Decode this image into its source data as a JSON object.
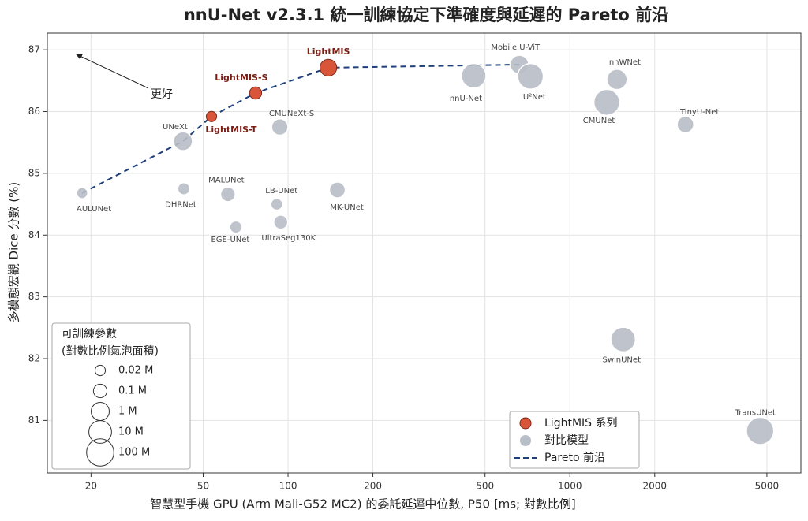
{
  "chart_data": {
    "type": "scatter",
    "title": "nnU-Net v2.3.1 統一訓練協定下準確度與延遲的 Pareto 前沿",
    "x_label": "智慧型手機 GPU (Arm Mali-G52 MC2) 的委託延遲中位數, P50 [ms; 對數比例]",
    "y_label": "多模態宏觀 Dice 分數 (%)",
    "x_log": true,
    "grid": true,
    "xlim": [
      14,
      6600
    ],
    "ylim": [
      80.15,
      87.27
    ],
    "xticks": [
      20,
      50,
      100,
      200,
      500,
      1000,
      2000,
      5000
    ],
    "yticks": [
      81,
      82,
      83,
      84,
      85,
      86,
      87
    ],
    "legend_position": "lower right",
    "series": [
      {
        "name": "LightMIS 系列",
        "color": "#d9553a",
        "labels": [
          "LightMIS",
          "LightMIS-S",
          "LightMIS-T"
        ],
        "x": [
          139,
          76.7,
          53.5
        ],
        "values": [
          86.71,
          86.3,
          85.92
        ],
        "sizes": [
          0.5,
          0.05,
          0.02
        ]
      },
      {
        "name": "對比模型",
        "color": "#b8bec7",
        "labels": [
          "UNeXt",
          "AULUNet",
          "DHRNet",
          "MALUNet",
          "EGE-UNet",
          "LB-UNet",
          "UltraSeg130K",
          "CMUNeXt-S",
          "MK-UNet",
          "nnU-Net",
          "Mobile U-ViT",
          "U²Net",
          "nnWNet",
          "CMUNet",
          "TinyU-Net",
          "SwinUNet",
          "TransUNet"
        ],
        "x": [
          42.4,
          18.6,
          42.7,
          61.2,
          65.3,
          91.2,
          94.2,
          93.5,
          149.6,
          456,
          662,
          725,
          1469,
          1352,
          2570,
          1545,
          4730
        ],
        "values": [
          85.52,
          84.68,
          84.75,
          84.66,
          84.13,
          84.5,
          84.21,
          85.75,
          84.73,
          86.58,
          86.76,
          86.57,
          86.52,
          86.15,
          85.79,
          82.31,
          80.83
        ],
        "sizes": [
          1.5,
          0.03,
          0.05,
          0.18,
          0.05,
          0.04,
          0.13,
          0.42,
          0.32,
          26,
          1.3,
          44,
          3,
          50,
          0.48,
          27,
          105
        ]
      },
      {
        "name": "Pareto 前沿",
        "color": "#1f3f7a",
        "line": true,
        "x": [
          18.6,
          42.4,
          53.5,
          76.7,
          139,
          662
        ],
        "values": [
          84.68,
          85.52,
          85.92,
          86.3,
          86.71,
          86.76
        ]
      }
    ],
    "annotation": "更好",
    "size_legend": {
      "title": [
        "可訓練參數",
        "(對數比例氣泡面積)"
      ],
      "sizes": [
        {
          "value": 0.02,
          "label": "0.02 M"
        },
        {
          "value": 0.1,
          "label": "0.1 M"
        },
        {
          "value": 1,
          "label": "1 M"
        },
        {
          "value": 10,
          "label": "10 M"
        },
        {
          "value": 100,
          "label": "100 M"
        }
      ]
    }
  }
}
